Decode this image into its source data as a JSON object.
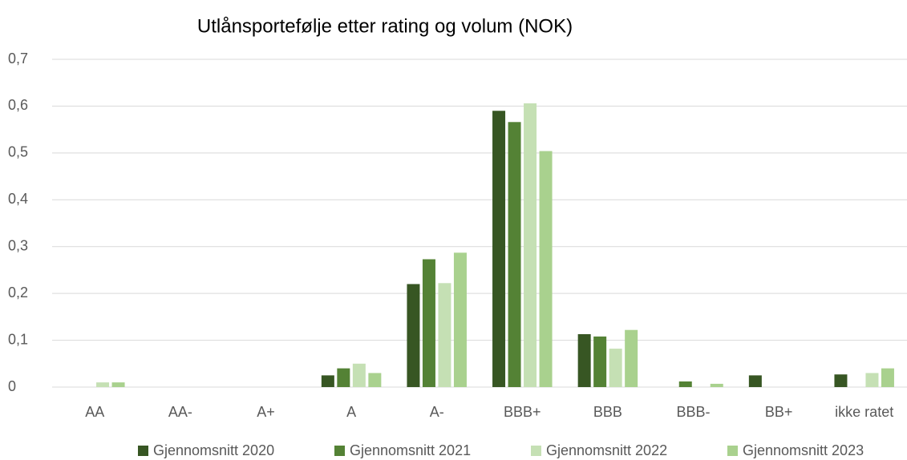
{
  "chart_data": {
    "type": "bar",
    "title": "Utlånsportefølje etter rating og volum (NOK)",
    "categories": [
      "AA",
      "AA-",
      "A+",
      "A",
      "A-",
      "BBB+",
      "BBB",
      "BBB-",
      "BB+",
      "ikke ratet"
    ],
    "series": [
      {
        "name": "Gjennomsnitt 2020",
        "color": "#375623",
        "values": [
          0,
          0,
          0,
          0.025,
          0.22,
          0.59,
          0.113,
          0,
          0.025,
          0.027
        ]
      },
      {
        "name": "Gjennomsnitt 2021",
        "color": "#548235",
        "values": [
          0,
          0,
          0,
          0.04,
          0.273,
          0.566,
          0.108,
          0.012,
          0,
          0
        ]
      },
      {
        "name": "Gjennomsnitt 2022",
        "color": "#c5e0b4",
        "values": [
          0.01,
          0,
          0,
          0.05,
          0.222,
          0.606,
          0.082,
          0,
          0,
          0.03
        ]
      },
      {
        "name": "Gjennomsnitt 2023",
        "color": "#a9d18e",
        "values": [
          0.01,
          0,
          0,
          0.03,
          0.287,
          0.504,
          0.122,
          0.007,
          0,
          0.04
        ]
      }
    ],
    "ylim": [
      0,
      0.7
    ],
    "yticks": [
      0,
      {
        "value": 0.1,
        "label": "0,1"
      },
      {
        "value": 0.2,
        "label": "0,2"
      },
      {
        "value": 0.3,
        "label": "0,3"
      },
      {
        "value": 0.4,
        "label": "0,4"
      },
      {
        "value": 0.5,
        "label": "0,5"
      },
      {
        "value": 0.6,
        "label": "0,6"
      },
      {
        "value": 0.7,
        "label": "0,7"
      }
    ],
    "grid": true,
    "legend": "bottom"
  }
}
